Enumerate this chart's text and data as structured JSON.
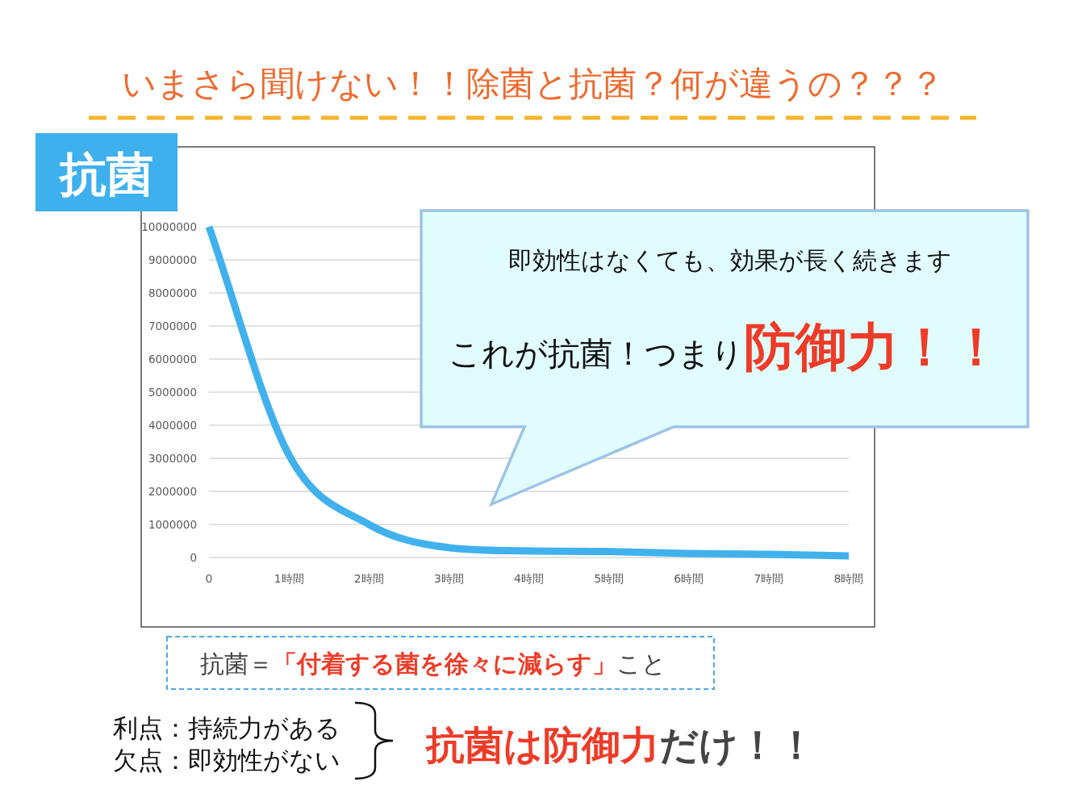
{
  "chart_data": {
    "type": "line",
    "title": "いまさら聞けない！！除菌と抗菌？何が違うの？？？",
    "categories": [
      "0",
      "1時間",
      "2時間",
      "3時間",
      "4時間",
      "5時間",
      "6時間",
      "7時間",
      "8時間"
    ],
    "series": [
      {
        "color": "#41b1ee",
        "values": [
          10000000,
          3100000,
          1000000,
          300000,
          200000,
          180000,
          120000,
          100000,
          50000
        ]
      }
    ],
    "ylim": [
      0,
      10000000
    ],
    "yticks": [
      0,
      1000000,
      2000000,
      3000000,
      4000000,
      5000000,
      6000000,
      7000000,
      8000000,
      9000000,
      10000000
    ],
    "grid": "y",
    "legend": false,
    "marker": "none",
    "line_style": "solid",
    "annotations": [
      "抗菌",
      "即効性はなくても、効果が長く続きます",
      "これが抗菌！つまり",
      "防御力！！",
      "抗菌＝",
      "「付着する菌を徐々に減らす」",
      "こと",
      "利点：持続力がある",
      "欠点：即効性がない",
      "抗菌は防御力",
      "だけ！！"
    ]
  }
}
